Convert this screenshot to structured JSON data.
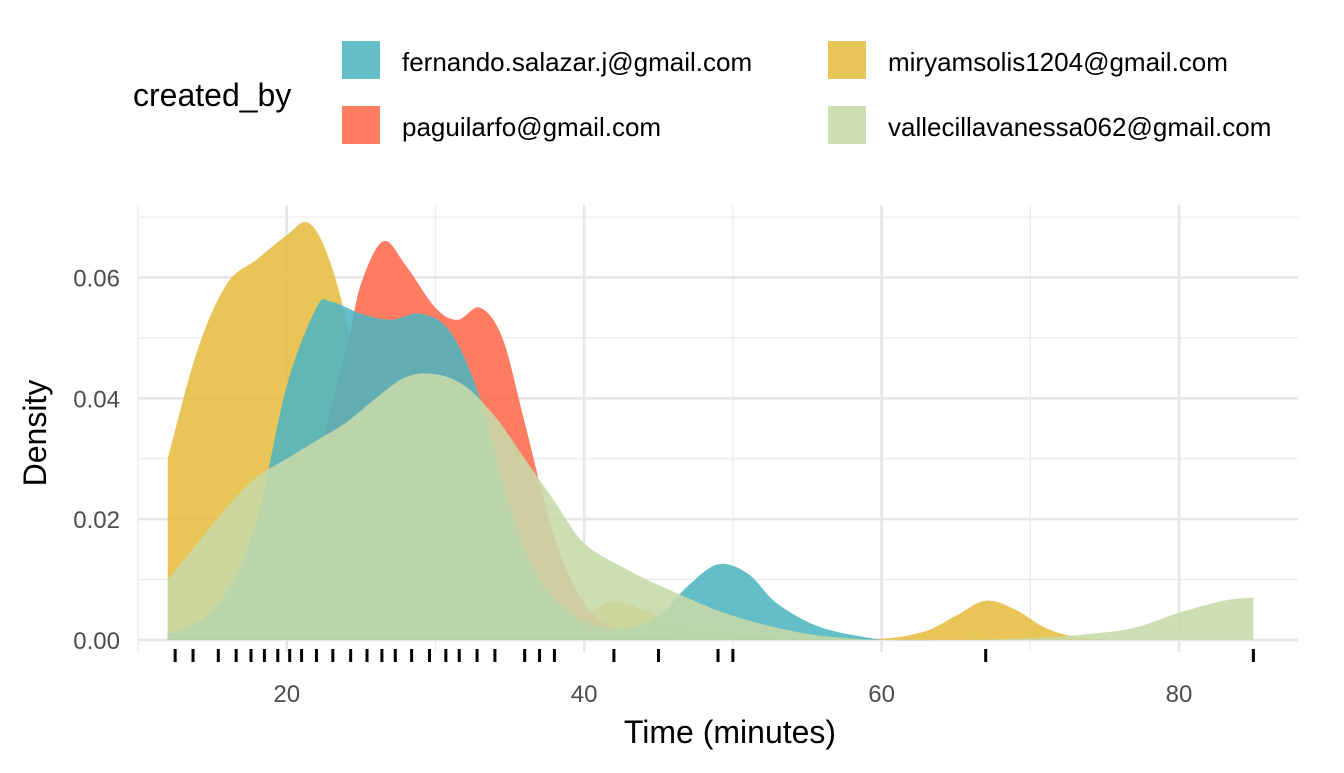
{
  "chart_data": {
    "type": "area",
    "subtype": "density",
    "title": "",
    "xlabel": "Time (minutes)",
    "ylabel": "Density",
    "xlim": [
      10,
      88
    ],
    "ylim": [
      -0.002,
      0.072
    ],
    "x_ticks": [
      20,
      40,
      60,
      80
    ],
    "x_tick_labels": [
      "20",
      "40",
      "60",
      "80"
    ],
    "y_ticks": [
      0,
      0.02,
      0.04,
      0.06
    ],
    "y_tick_labels": [
      "0.00",
      "0.02",
      "0.04",
      "0.06"
    ],
    "x_minor_ticks": [
      10,
      30,
      50,
      70
    ],
    "y_minor_ticks": [
      0.01,
      0.03,
      0.05,
      0.07
    ],
    "grid": true,
    "legend": {
      "title": "created_by",
      "position": "top"
    },
    "series": [
      {
        "name": "miryamsolis1204@gmail.com",
        "color": "#e6bc3f",
        "x": [
          12,
          14,
          16,
          18,
          20,
          21.5,
          23,
          25,
          27,
          29,
          31,
          33,
          35,
          38,
          40,
          42,
          44,
          46,
          50,
          55,
          60,
          63,
          65,
          67,
          69,
          71,
          73,
          75
        ],
        "y": [
          0.03,
          0.048,
          0.059,
          0.063,
          0.067,
          0.069,
          0.062,
          0.044,
          0.03,
          0.021,
          0.015,
          0.01,
          0.006,
          0.002,
          0.004,
          0.0065,
          0.005,
          0.003,
          0.001,
          0.0003,
          0.0002,
          0.0015,
          0.004,
          0.0065,
          0.005,
          0.002,
          0.0005,
          0
        ]
      },
      {
        "name": "paguilarfo@gmail.com",
        "color": "#fe6b4c",
        "x": [
          12,
          15,
          18,
          20,
          22,
          24,
          25,
          26.5,
          28,
          30,
          31.5,
          33,
          34.5,
          36,
          38,
          40,
          42,
          44,
          46
        ],
        "y": [
          0.0005,
          0.002,
          0.008,
          0.018,
          0.03,
          0.048,
          0.059,
          0.066,
          0.062,
          0.055,
          0.053,
          0.055,
          0.05,
          0.036,
          0.017,
          0.006,
          0.002,
          0.0005,
          0
        ]
      },
      {
        "name": "fernando.salazar.j@gmail.com",
        "color": "#4db5c0",
        "x": [
          12,
          14,
          16,
          18,
          20,
          22,
          23,
          25,
          27,
          29,
          31,
          33,
          35,
          37,
          40,
          43,
          45,
          47,
          49,
          51,
          53,
          56,
          60
        ],
        "y": [
          0.001,
          0.003,
          0.008,
          0.02,
          0.042,
          0.055,
          0.056,
          0.054,
          0.053,
          0.054,
          0.051,
          0.04,
          0.022,
          0.01,
          0.003,
          0.002,
          0.004,
          0.009,
          0.0125,
          0.011,
          0.006,
          0.002,
          0
        ]
      },
      {
        "name": "vallecillavanessa062@gmail.com",
        "color": "#c7d9a9",
        "x": [
          12,
          14,
          16,
          18,
          20,
          22,
          24,
          26,
          28,
          30,
          32,
          34,
          36,
          38,
          40,
          43,
          46,
          50,
          55,
          60,
          65,
          70,
          74,
          77,
          80,
          83,
          85
        ],
        "y": [
          0.01,
          0.016,
          0.022,
          0.027,
          0.03,
          0.033,
          0.036,
          0.04,
          0.0435,
          0.044,
          0.042,
          0.037,
          0.03,
          0.023,
          0.016,
          0.0115,
          0.008,
          0.004,
          0.001,
          0,
          0,
          0.0003,
          0.001,
          0.002,
          0.0045,
          0.0065,
          0.007
        ]
      }
    ],
    "rug": [
      12.5,
      13.7,
      15.4,
      16.6,
      17.6,
      18.5,
      19.4,
      20.2,
      21.0,
      22.0,
      23.1,
      24.3,
      25.4,
      26.4,
      27.3,
      28.4,
      29.6,
      30.7,
      31.6,
      32.8,
      34.0,
      36.0,
      37.0,
      38.0,
      42.0,
      45.0,
      49.0,
      50.0,
      67.0,
      85.0
    ]
  }
}
